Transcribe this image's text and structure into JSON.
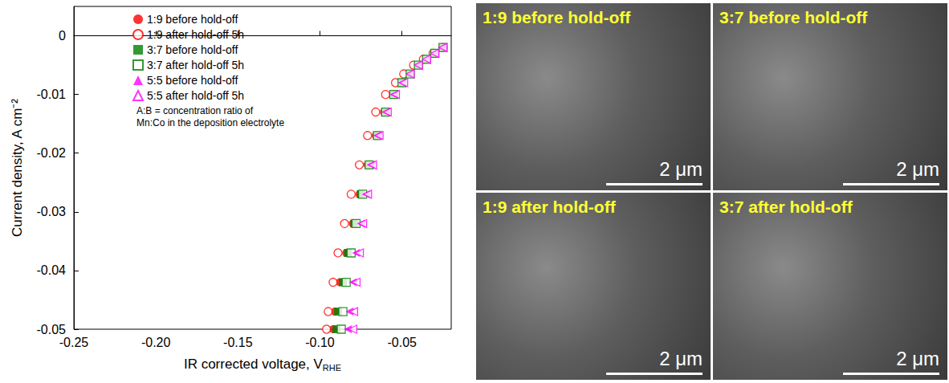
{
  "chart_data": {
    "type": "scatter",
    "xlabel": "IR corrected voltage, V",
    "xlabel_sub": "RHE",
    "ylabel": "Current density, A cm⁻²",
    "xlim": [
      -0.25,
      -0.02
    ],
    "xticks": [
      -0.25,
      {
        "value": -0.2,
        "label": "-0.20"
      },
      -0.15,
      {
        "value": -0.1,
        "label": "-0.10"
      },
      -0.05
    ],
    "ylim": [
      -0.05,
      0.005
    ],
    "yticks": [
      -0.05,
      -0.04,
      -0.03,
      -0.02,
      -0.01,
      0
    ],
    "grid": false,
    "legend": "upper left",
    "annotation": [
      "A:B = concentration ratio of",
      "Mn:Co in the deposition electrolyte"
    ],
    "series": [
      {
        "name": "1:9 before hold-off",
        "color": "#ff0000",
        "marker": "circle",
        "x": [
          -0.025,
          -0.03,
          -0.035,
          -0.04,
          -0.045,
          -0.05,
          -0.055,
          -0.061,
          -0.066,
          -0.071,
          -0.076,
          -0.08,
          -0.084,
          -0.088,
          -0.091,
          -0.092
        ],
        "values": [
          -0.002,
          -0.003,
          -0.004,
          -0.005,
          -0.0065,
          -0.008,
          -0.01,
          -0.013,
          -0.017,
          -0.022,
          -0.027,
          -0.032,
          -0.037,
          -0.042,
          -0.047,
          -0.05
        ]
      },
      {
        "name": "1:9 after hold-off 5h",
        "color": "#ff0000",
        "marker": "circle-open",
        "x": [
          -0.025,
          -0.031,
          -0.037,
          -0.043,
          -0.049,
          -0.054,
          -0.06,
          -0.066,
          -0.071,
          -0.076,
          -0.081,
          -0.085,
          -0.089,
          -0.092,
          -0.095,
          -0.096
        ],
        "values": [
          -0.002,
          -0.003,
          -0.004,
          -0.005,
          -0.0065,
          -0.008,
          -0.01,
          -0.013,
          -0.017,
          -0.022,
          -0.027,
          -0.032,
          -0.037,
          -0.042,
          -0.047,
          -0.05
        ]
      },
      {
        "name": "3:7 before hold-off",
        "color": "#008000",
        "marker": "square",
        "x": [
          -0.025,
          -0.03,
          -0.035,
          -0.04,
          -0.045,
          -0.05,
          -0.055,
          -0.06,
          -0.065,
          -0.07,
          -0.075,
          -0.079,
          -0.083,
          -0.086,
          -0.089,
          -0.09
        ],
        "values": [
          -0.002,
          -0.003,
          -0.004,
          -0.005,
          -0.0065,
          -0.008,
          -0.01,
          -0.013,
          -0.017,
          -0.022,
          -0.027,
          -0.032,
          -0.037,
          -0.042,
          -0.047,
          -0.05
        ]
      },
      {
        "name": "3:7 after hold-off 5h",
        "color": "#008000",
        "marker": "square-open",
        "x": [
          -0.025,
          -0.03,
          -0.035,
          -0.04,
          -0.045,
          -0.05,
          -0.055,
          -0.06,
          -0.065,
          -0.07,
          -0.074,
          -0.078,
          -0.081,
          -0.084,
          -0.086,
          -0.087
        ],
        "values": [
          -0.002,
          -0.003,
          -0.004,
          -0.005,
          -0.0065,
          -0.008,
          -0.01,
          -0.013,
          -0.017,
          -0.022,
          -0.027,
          -0.032,
          -0.037,
          -0.042,
          -0.047,
          -0.05
        ]
      },
      {
        "name": "5:5 before hold-off",
        "color": "#ff00ff",
        "marker": "triangle-left",
        "x": [
          -0.025,
          -0.03,
          -0.035,
          -0.04,
          -0.045,
          -0.05,
          -0.055,
          -0.06,
          -0.065,
          -0.069,
          -0.072,
          -0.075,
          -0.078,
          -0.08,
          -0.082,
          -0.083
        ],
        "values": [
          -0.002,
          -0.003,
          -0.004,
          -0.005,
          -0.0065,
          -0.008,
          -0.01,
          -0.013,
          -0.017,
          -0.022,
          -0.027,
          -0.032,
          -0.037,
          -0.042,
          -0.047,
          -0.05
        ]
      },
      {
        "name": "5:5 after hold-off 5h",
        "color": "#ff00ff",
        "marker": "triangle-left-open",
        "x": [
          -0.025,
          -0.03,
          -0.035,
          -0.04,
          -0.045,
          -0.049,
          -0.054,
          -0.059,
          -0.064,
          -0.068,
          -0.071,
          -0.074,
          -0.076,
          -0.078,
          -0.0795,
          -0.08
        ],
        "values": [
          -0.002,
          -0.003,
          -0.004,
          -0.005,
          -0.0065,
          -0.008,
          -0.01,
          -0.013,
          -0.017,
          -0.022,
          -0.027,
          -0.032,
          -0.037,
          -0.042,
          -0.047,
          -0.05
        ]
      }
    ]
  },
  "panels": [
    {
      "title": "1:9 before hold-off",
      "scale_bar": "2 μm"
    },
    {
      "title": "3:7 before hold-off",
      "scale_bar": "2 μm"
    },
    {
      "title": "1:9 after hold-off",
      "scale_bar": "2 μm"
    },
    {
      "title": "3:7 after hold-off",
      "scale_bar": "2 μm"
    }
  ]
}
